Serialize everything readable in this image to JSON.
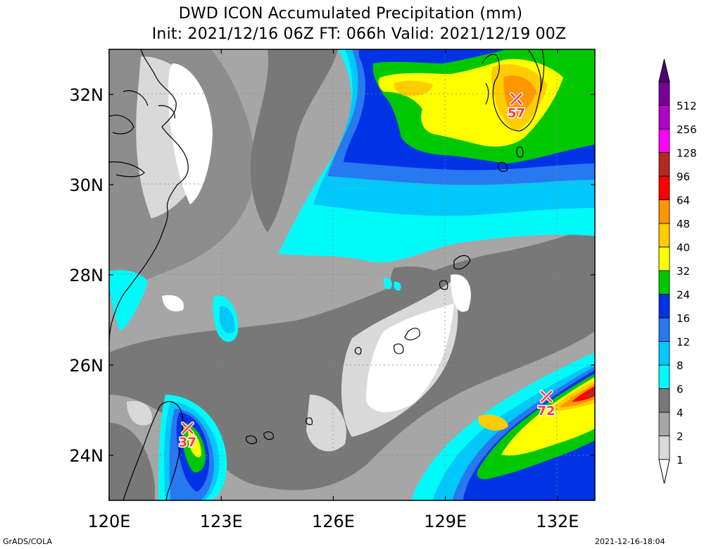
{
  "title_line1": "DWD ICON Accumulated Precipitation (mm)",
  "title_line2": "Init: 2021/12/16 06Z  FT: 066h  Valid: 2021/12/19 00Z",
  "credit_left": "GrADS/COLA",
  "credit_right": "2021-12-16-18:04",
  "chart_data": {
    "type": "heatmap",
    "x_ticks": [
      "120E",
      "123E",
      "126E",
      "129E",
      "132E"
    ],
    "y_ticks": [
      "32N",
      "30N",
      "28N",
      "26N",
      "24N"
    ],
    "lon_range": [
      120,
      133
    ],
    "lat_range": [
      23,
      33
    ],
    "grid": true,
    "legend_placement": "right",
    "legend": [
      {
        "label": "1",
        "color": "#d9d9d9"
      },
      {
        "label": "2",
        "color": "#a6a6a6"
      },
      {
        "label": "4",
        "color": "#787878"
      },
      {
        "label": "6",
        "color": "#00fafa"
      },
      {
        "label": "8",
        "color": "#00c8fa"
      },
      {
        "label": "12",
        "color": "#2878f0"
      },
      {
        "label": "16",
        "color": "#0032e6"
      },
      {
        "label": "24",
        "color": "#00c800"
      },
      {
        "label": "32",
        "color": "#ffff00"
      },
      {
        "label": "40",
        "color": "#ffcc00"
      },
      {
        "label": "48",
        "color": "#ff9600"
      },
      {
        "label": "64",
        "color": "#ff0000"
      },
      {
        "label": "96",
        "color": "#b4281e"
      },
      {
        "label": "128",
        "color": "#ff00ff"
      },
      {
        "label": "256",
        "color": "#b400c8"
      },
      {
        "label": "512",
        "color": "#780096"
      }
    ],
    "legend_top_color": "#50007a",
    "maxima": [
      {
        "value": "57",
        "lon": 130.9,
        "lat": 31.9
      },
      {
        "value": "72",
        "lon": 131.7,
        "lat": 25.3
      },
      {
        "value": "37",
        "lon": 122.1,
        "lat": 24.6
      }
    ]
  }
}
